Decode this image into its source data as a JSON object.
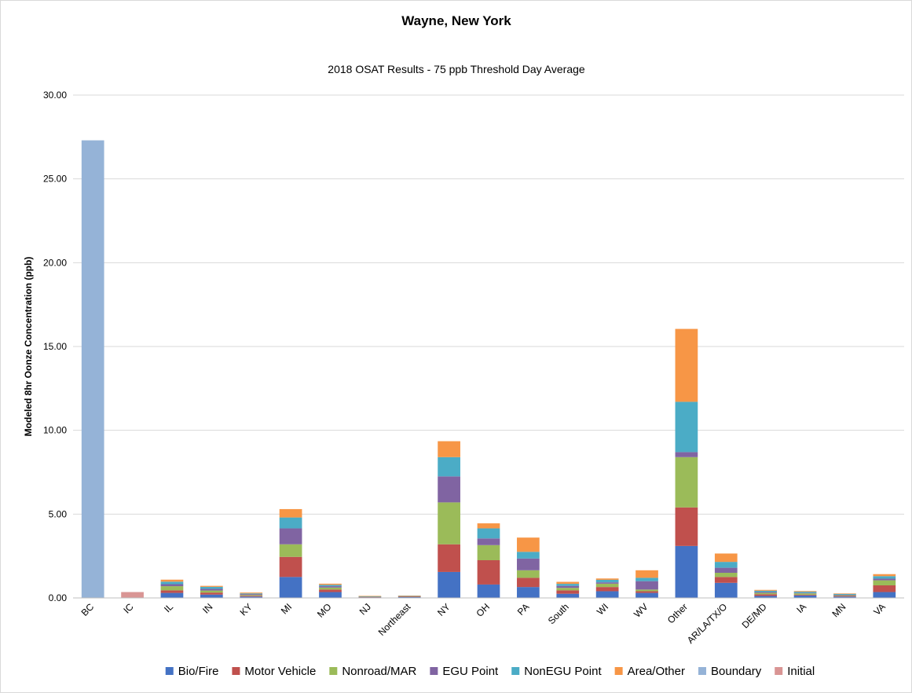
{
  "chart_data": {
    "type": "bar",
    "stacked": true,
    "title": "Wayne, New York",
    "subtitle": "2018 OSAT Results - 75 ppb Threshold Day Average",
    "xlabel": "",
    "ylabel": "Modeled 8hr Oonze Concentration (ppb)",
    "ylim": [
      0,
      30
    ],
    "yticks": [
      "0.00",
      "5.00",
      "10.00",
      "15.00",
      "20.00",
      "25.00",
      "30.00"
    ],
    "grid": true,
    "legend_position": "bottom",
    "categories": [
      "BC",
      "IC",
      "IL",
      "IN",
      "KY",
      "MI",
      "MO",
      "NJ",
      "Northeast",
      "NY",
      "OH",
      "PA",
      "South",
      "WI",
      "WV",
      "Other",
      "AR/LA/TX/O",
      "DE/MD",
      "IA",
      "MN",
      "VA"
    ],
    "series": [
      {
        "name": "Bio/Fire",
        "color": "#4472c4",
        "values": [
          0,
          0,
          0.3,
          0.2,
          0.08,
          1.25,
          0.35,
          0.04,
          0.05,
          1.55,
          0.8,
          0.65,
          0.25,
          0.4,
          0.3,
          3.1,
          0.9,
          0.12,
          0.15,
          0.08,
          0.35
        ]
      },
      {
        "name": "Motor Vehicle",
        "color": "#c0504d",
        "values": [
          0,
          0,
          0.15,
          0.12,
          0.05,
          1.2,
          0.15,
          0.02,
          0.03,
          1.65,
          1.45,
          0.55,
          0.2,
          0.25,
          0.1,
          2.3,
          0.35,
          0.1,
          0.04,
          0.04,
          0.4
        ]
      },
      {
        "name": "Nonroad/MAR",
        "color": "#9bbb59",
        "values": [
          0,
          0,
          0.25,
          0.12,
          0.05,
          0.75,
          0.12,
          0.02,
          0.02,
          2.5,
          0.9,
          0.45,
          0.15,
          0.2,
          0.1,
          3.0,
          0.25,
          0.08,
          0.08,
          0.04,
          0.3
        ]
      },
      {
        "name": "EGU Point",
        "color": "#8064a2",
        "values": [
          0,
          0,
          0.12,
          0.1,
          0.05,
          0.95,
          0.08,
          0.01,
          0.01,
          1.55,
          0.4,
          0.7,
          0.12,
          0.08,
          0.5,
          0.3,
          0.3,
          0.05,
          0.03,
          0.03,
          0.1
        ]
      },
      {
        "name": "NonEGU Point",
        "color": "#4bacc6",
        "values": [
          0,
          0,
          0.15,
          0.12,
          0.04,
          0.65,
          0.08,
          0.01,
          0.01,
          1.15,
          0.6,
          0.4,
          0.12,
          0.15,
          0.2,
          3.0,
          0.35,
          0.08,
          0.07,
          0.05,
          0.15
        ]
      },
      {
        "name": "Area/Other",
        "color": "#f79646",
        "values": [
          0,
          0,
          0.12,
          0.06,
          0.05,
          0.5,
          0.07,
          0.02,
          0.02,
          0.95,
          0.3,
          0.85,
          0.12,
          0.08,
          0.45,
          4.35,
          0.5,
          0.05,
          0.04,
          0.03,
          0.12
        ]
      },
      {
        "name": "Boundary",
        "color": "#95b3d7",
        "values": [
          27.3,
          0,
          0,
          0,
          0,
          0,
          0,
          0,
          0,
          0,
          0,
          0,
          0,
          0,
          0,
          0,
          0,
          0,
          0,
          0,
          0
        ]
      },
      {
        "name": "Initial",
        "color": "#d99594",
        "values": [
          0,
          0.35,
          0,
          0,
          0,
          0,
          0,
          0,
          0,
          0,
          0,
          0,
          0,
          0,
          0,
          0,
          0,
          0,
          0,
          0,
          0
        ]
      }
    ]
  }
}
